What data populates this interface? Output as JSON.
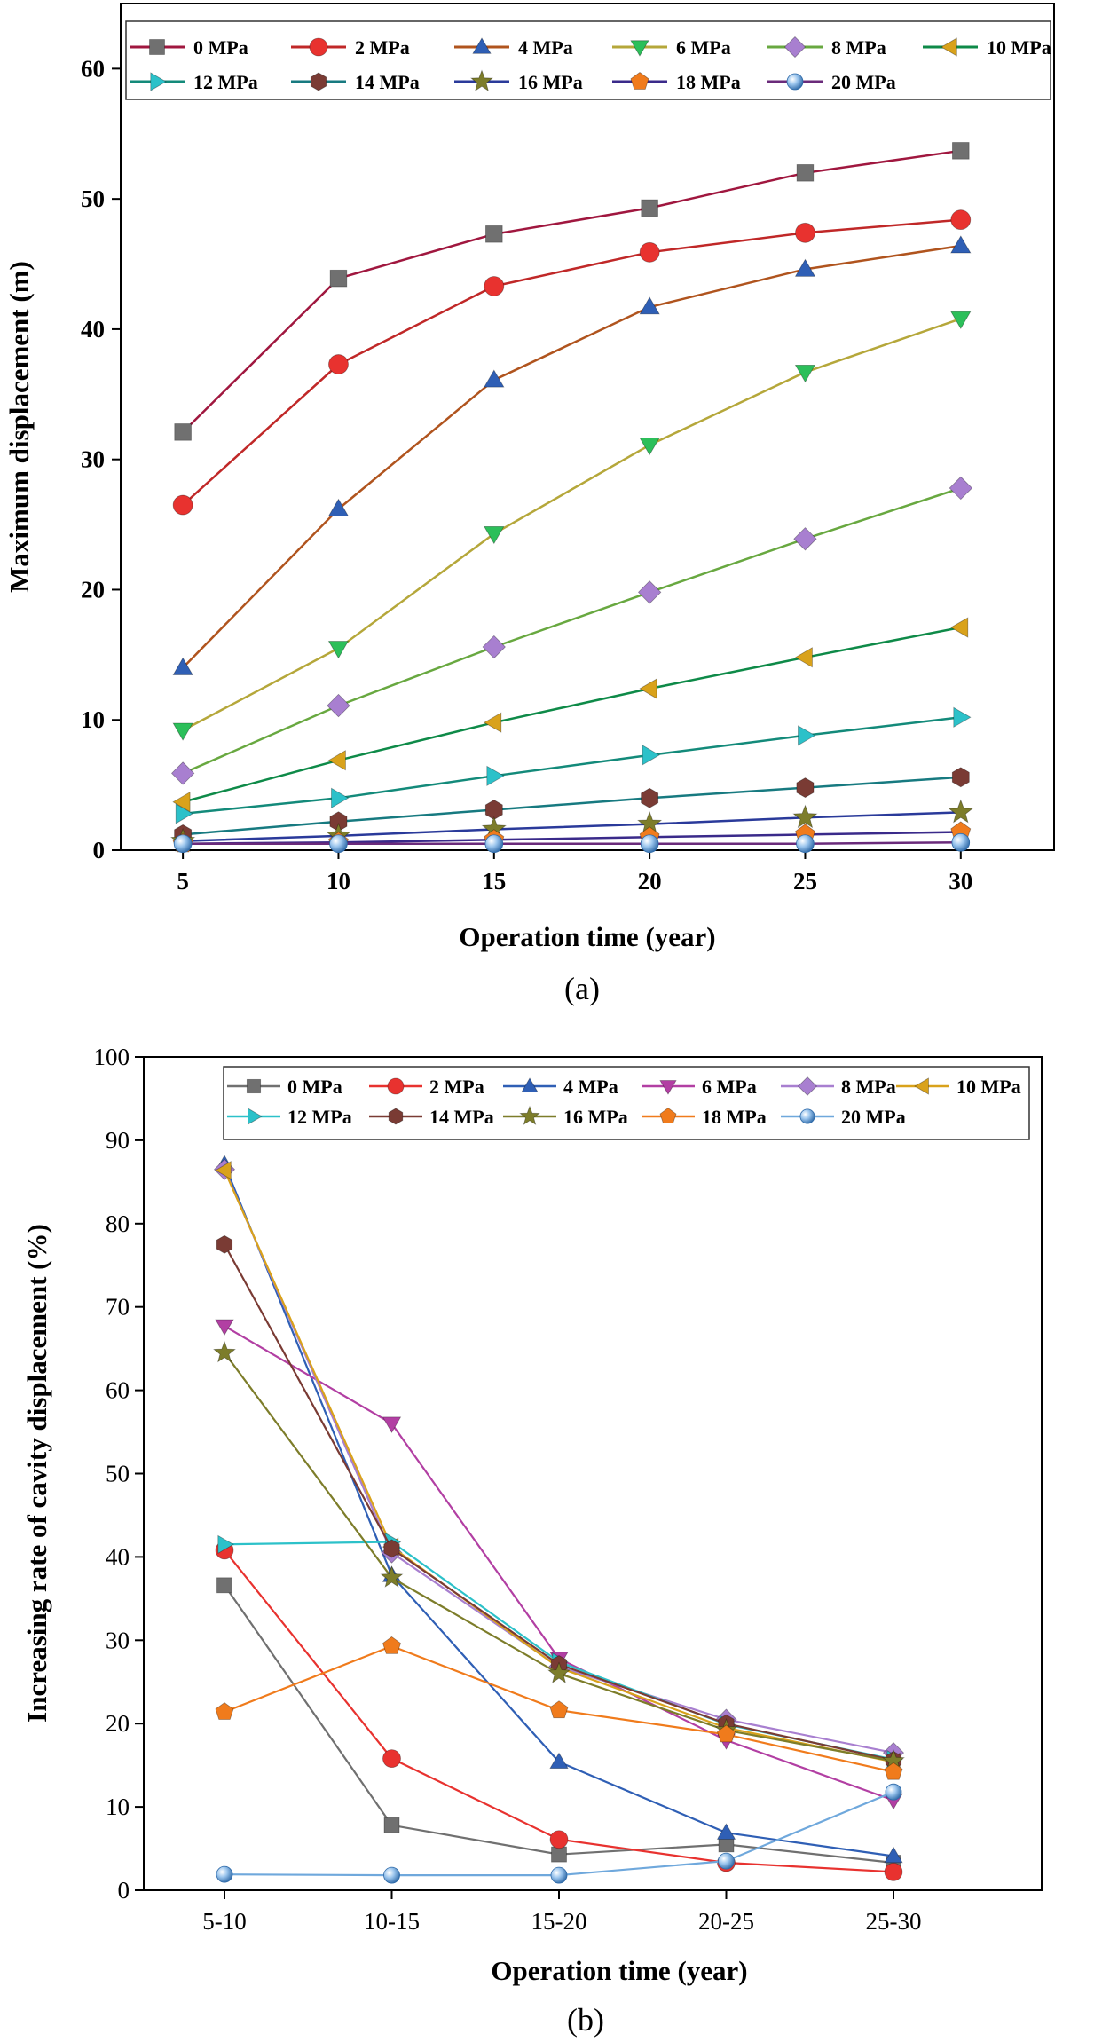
{
  "chart_data": [
    {
      "panel_label": "(a)",
      "type": "line",
      "xlabel": "Operation time (year)",
      "ylabel": "Maximum displacement (m)",
      "x": [
        5,
        10,
        15,
        20,
        25,
        30
      ],
      "x_tick_labels": [
        "5",
        "10",
        "15",
        "20",
        "25",
        "30"
      ],
      "xlim": [
        3,
        33
      ],
      "ylim": [
        0,
        65
      ],
      "y_ticks": [
        0,
        10,
        20,
        30,
        40,
        50,
        60
      ],
      "y_tick_labels": [
        "0",
        "10",
        "20",
        "30",
        "40",
        "50",
        "60"
      ],
      "legend_position": "top",
      "series": [
        {
          "name": "0 MPa",
          "line_color": "#a0173f",
          "marker": "square",
          "marker_color": "#707070",
          "values": [
            32.1,
            43.9,
            47.3,
            49.3,
            52.0,
            53.7
          ]
        },
        {
          "name": "2 MPa",
          "line_color": "#c02828",
          "marker": "circle",
          "marker_color": "#e8322f",
          "values": [
            26.5,
            37.3,
            43.3,
            45.9,
            47.4,
            48.4
          ]
        },
        {
          "name": "4 MPa",
          "line_color": "#b0541e",
          "marker": "triangle-up",
          "marker_color": "#2f5fb5",
          "values": [
            14.0,
            26.2,
            36.1,
            41.7,
            44.6,
            46.4
          ]
        },
        {
          "name": "6 MPa",
          "line_color": "#b5a73a",
          "marker": "triangle-down",
          "marker_color": "#2cbf5a",
          "values": [
            9.2,
            15.5,
            24.3,
            31.1,
            36.7,
            40.8
          ]
        },
        {
          "name": "8 MPa",
          "line_color": "#68a840",
          "marker": "diamond",
          "marker_color": "#a87fd0",
          "values": [
            5.9,
            11.1,
            15.6,
            19.8,
            23.9,
            27.8
          ]
        },
        {
          "name": "10 MPa",
          "line_color": "#0e8a48",
          "marker": "triangle-left",
          "marker_color": "#d9a21b",
          "values": [
            3.7,
            6.9,
            9.8,
            12.4,
            14.8,
            17.1
          ]
        },
        {
          "name": "12 MPa",
          "line_color": "#138a7a",
          "marker": "triangle-right",
          "marker_color": "#2cc1c9",
          "values": [
            2.8,
            4.0,
            5.7,
            7.3,
            8.8,
            10.2
          ]
        },
        {
          "name": "14 MPa",
          "line_color": "#177a80",
          "marker": "hexagon",
          "marker_color": "#7a3b34",
          "values": [
            1.2,
            2.2,
            3.1,
            4.0,
            4.8,
            5.6
          ]
        },
        {
          "name": "16 MPa",
          "line_color": "#2a3a9a",
          "marker": "star",
          "marker_color": "#7d7d2a",
          "values": [
            0.7,
            1.1,
            1.6,
            2.0,
            2.5,
            2.9
          ]
        },
        {
          "name": "18 MPa",
          "line_color": "#3a2a8a",
          "marker": "pentagon",
          "marker_color": "#f07b1c",
          "values": [
            0.5,
            0.6,
            0.8,
            1.0,
            1.2,
            1.4
          ]
        },
        {
          "name": "20 MPa",
          "line_color": "#6a2a7a",
          "marker": "sphere",
          "marker_color": "#6fa8dc",
          "values": [
            0.5,
            0.5,
            0.5,
            0.5,
            0.5,
            0.6
          ]
        }
      ]
    },
    {
      "panel_label": "(b)",
      "type": "line",
      "xlabel": "Operation time (year)",
      "ylabel": "Increasing rate of cavity displacement (%)",
      "categories": [
        "5-10",
        "10-15",
        "15-20",
        "20-25",
        "25-30"
      ],
      "ylim": [
        0,
        100
      ],
      "y_ticks": [
        0,
        10,
        20,
        30,
        40,
        50,
        60,
        70,
        80,
        90,
        100
      ],
      "y_tick_labels": [
        "0",
        "10",
        "20",
        "30",
        "40",
        "50",
        "60",
        "70",
        "80",
        "90",
        "100"
      ],
      "legend_position": "top",
      "series": [
        {
          "name": "0 MPa",
          "line_color": "#707070",
          "marker": "square",
          "marker_color": "#707070",
          "values": [
            36.6,
            7.8,
            4.3,
            5.5,
            3.3
          ]
        },
        {
          "name": "2 MPa",
          "line_color": "#e8322f",
          "marker": "circle",
          "marker_color": "#e8322f",
          "values": [
            40.8,
            15.8,
            6.1,
            3.3,
            2.2
          ]
        },
        {
          "name": "4 MPa",
          "line_color": "#2f5fb5",
          "marker": "triangle-up",
          "marker_color": "#2f5fb5",
          "values": [
            87.1,
            37.8,
            15.4,
            6.9,
            4.1
          ]
        },
        {
          "name": "6 MPa",
          "line_color": "#b23fa3",
          "marker": "triangle-down",
          "marker_color": "#b23fa3",
          "values": [
            67.7,
            56.0,
            27.8,
            18.0,
            10.8
          ]
        },
        {
          "name": "8 MPa",
          "line_color": "#a87fd0",
          "marker": "diamond",
          "marker_color": "#a87fd0",
          "values": [
            86.5,
            40.5,
            26.8,
            20.5,
            16.5
          ]
        },
        {
          "name": "10 MPa",
          "line_color": "#d9a21b",
          "marker": "triangle-left",
          "marker_color": "#d9a21b",
          "values": [
            86.4,
            41.2,
            26.7,
            19.5,
            15.4
          ]
        },
        {
          "name": "12 MPa",
          "line_color": "#2cc1c9",
          "marker": "triangle-right",
          "marker_color": "#2cc1c9",
          "values": [
            41.5,
            41.8,
            27.4,
            19.9,
            15.7
          ]
        },
        {
          "name": "14 MPa",
          "line_color": "#7a3b34",
          "marker": "hexagon",
          "marker_color": "#7a3b34",
          "values": [
            77.5,
            41.0,
            27.1,
            20.0,
            15.6
          ]
        },
        {
          "name": "16 MPa",
          "line_color": "#7d7d2a",
          "marker": "star",
          "marker_color": "#7d7d2a",
          "values": [
            64.5,
            37.5,
            26.0,
            19.2,
            15.5
          ]
        },
        {
          "name": "18 MPa",
          "line_color": "#f07b1c",
          "marker": "pentagon",
          "marker_color": "#f07b1c",
          "values": [
            21.4,
            29.3,
            21.6,
            18.7,
            14.2
          ]
        },
        {
          "name": "20 MPa",
          "line_color": "#6fa8dc",
          "marker": "sphere",
          "marker_color": "#6fa8dc",
          "values": [
            1.9,
            1.8,
            1.8,
            3.5,
            11.8
          ]
        }
      ]
    }
  ]
}
